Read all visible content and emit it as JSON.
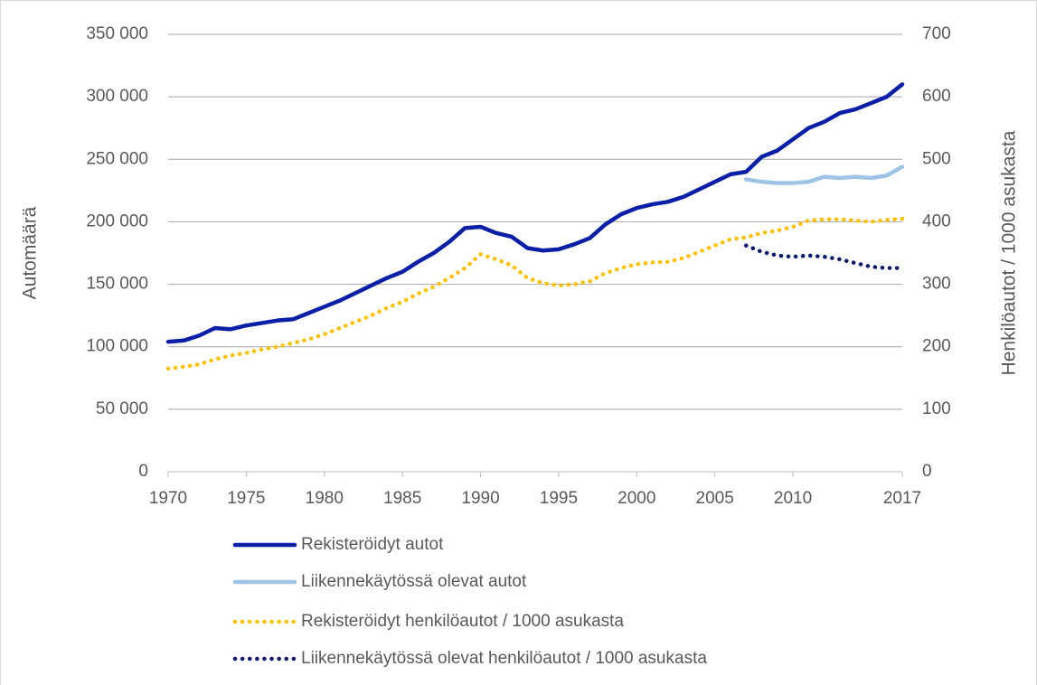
{
  "chart_data": {
    "type": "line",
    "y_label": "Automäärä",
    "y2_label": "Henkilöautot / 1000 asukasta",
    "x": [
      1970,
      1971,
      1972,
      1973,
      1974,
      1975,
      1976,
      1977,
      1978,
      1979,
      1980,
      1981,
      1982,
      1983,
      1984,
      1985,
      1986,
      1987,
      1988,
      1989,
      1990,
      1991,
      1992,
      1993,
      1994,
      1995,
      1996,
      1997,
      1998,
      1999,
      2000,
      2001,
      2002,
      2003,
      2004,
      2005,
      2006,
      2007,
      2008,
      2009,
      2010,
      2011,
      2012,
      2013,
      2014,
      2015,
      2016,
      2017
    ],
    "xlim": [
      1970,
      2017
    ],
    "xticks": [
      1970,
      1975,
      1980,
      1985,
      1990,
      1995,
      2000,
      2005,
      2010,
      2017
    ],
    "ylim": [
      0,
      350000
    ],
    "yticks": [
      {
        "value": 0,
        "label": "0"
      },
      {
        "value": 50000,
        "label": "50 000"
      },
      {
        "value": 100000,
        "label": "100 000"
      },
      {
        "value": 150000,
        "label": "150 000"
      },
      {
        "value": 200000,
        "label": "200 000"
      },
      {
        "value": 250000,
        "label": "250 000"
      },
      {
        "value": 300000,
        "label": "300 000"
      },
      {
        "value": 350000,
        "label": "350 000"
      }
    ],
    "y2lim": [
      0,
      700
    ],
    "y2ticks": [
      0,
      100,
      200,
      300,
      400,
      500,
      600,
      700
    ],
    "grid": true,
    "legend": "bottom",
    "series": [
      {
        "name": "Rekisteröidyt autot",
        "color": "#0a1fa8",
        "style": "solid",
        "axis": "y",
        "values": [
          104000,
          105000,
          109000,
          115000,
          114000,
          117000,
          119000,
          121000,
          122000,
          127000,
          132000,
          137000,
          143000,
          149000,
          155000,
          160000,
          168000,
          175000,
          184000,
          195000,
          196000,
          191000,
          188000,
          179000,
          177000,
          178000,
          182000,
          187000,
          198000,
          206000,
          211000,
          214000,
          216000,
          220000,
          226000,
          232000,
          238000,
          240000,
          252000,
          257000,
          266000,
          275000,
          280000,
          287000,
          290000,
          295000,
          300000,
          310000
        ]
      },
      {
        "name": "Liikennekäytössä olevat autot",
        "color": "#9dc3e6",
        "style": "solid",
        "axis": "y",
        "values": [
          null,
          null,
          null,
          null,
          null,
          null,
          null,
          null,
          null,
          null,
          null,
          null,
          null,
          null,
          null,
          null,
          null,
          null,
          null,
          null,
          null,
          null,
          null,
          null,
          null,
          null,
          null,
          null,
          null,
          null,
          null,
          null,
          null,
          null,
          null,
          null,
          null,
          234000,
          232000,
          231000,
          231000,
          232000,
          236000,
          235000,
          236000,
          235000,
          237000,
          244000
        ]
      },
      {
        "name": "Rekisteröidyt henkilöautot / 1000 asukasta",
        "color": "#ffc000",
        "style": "dotted",
        "axis": "y2",
        "values": [
          165,
          168,
          172,
          180,
          186,
          190,
          196,
          200,
          206,
          212,
          220,
          230,
          240,
          250,
          262,
          272,
          285,
          296,
          310,
          326,
          348,
          340,
          330,
          310,
          302,
          298,
          300,
          305,
          318,
          326,
          332,
          335,
          336,
          342,
          352,
          362,
          372,
          375,
          382,
          386,
          392,
          402,
          404,
          404,
          402,
          400,
          403,
          405
        ]
      },
      {
        "name": "Liikennekäytössä olevat henkilöautot / 1000 asukasta",
        "color": "#0b1a6e",
        "style": "dotted",
        "axis": "y2",
        "values": [
          null,
          null,
          null,
          null,
          null,
          null,
          null,
          null,
          null,
          null,
          null,
          null,
          null,
          null,
          null,
          null,
          null,
          null,
          null,
          null,
          null,
          null,
          null,
          null,
          null,
          null,
          null,
          null,
          null,
          null,
          null,
          null,
          null,
          null,
          null,
          null,
          null,
          362,
          352,
          346,
          344,
          346,
          344,
          340,
          334,
          328,
          326,
          326
        ]
      }
    ]
  }
}
